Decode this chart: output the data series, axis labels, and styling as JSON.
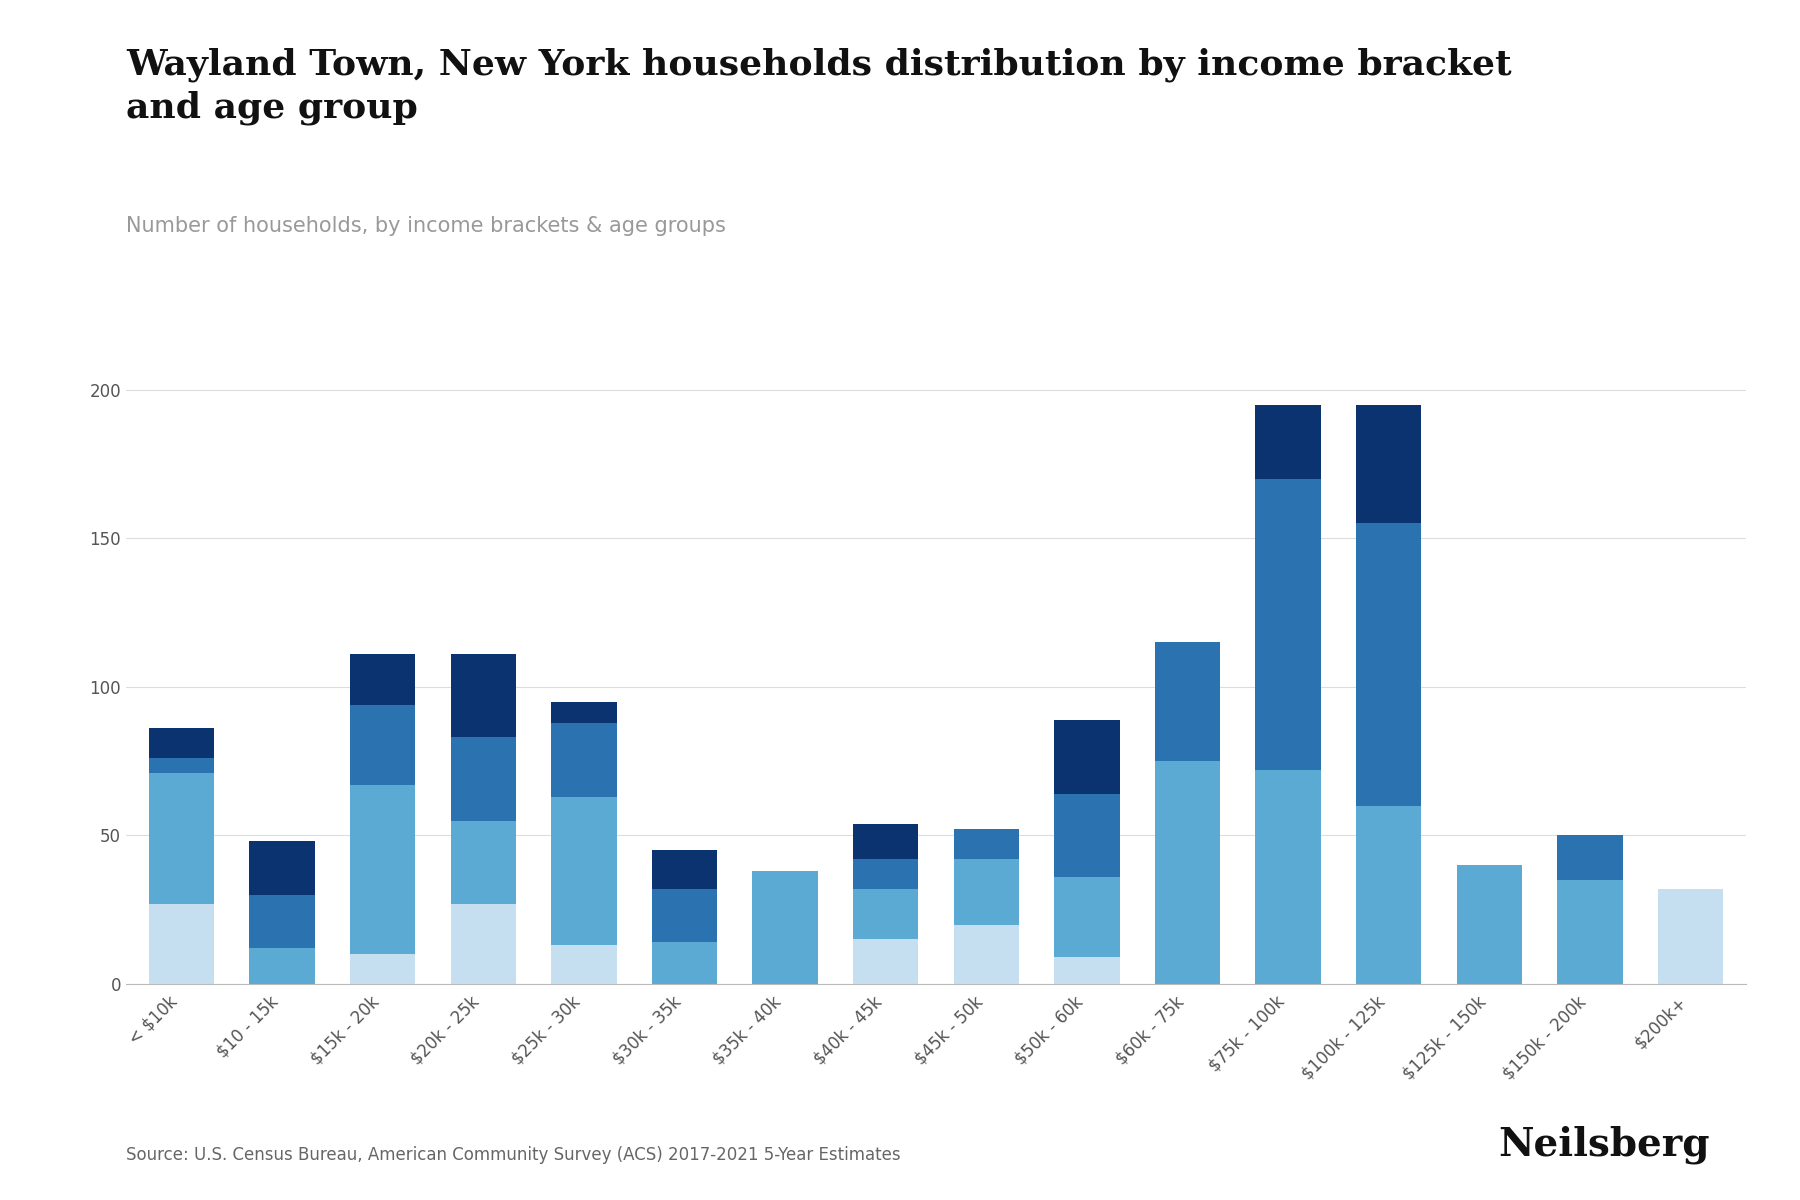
{
  "title": "Wayland Town, New York households distribution by income bracket\nand age group",
  "subtitle": "Number of households, by income brackets & age groups",
  "source": "Source: U.S. Census Bureau, American Community Survey (ACS) 2017-2021 5-Year Estimates",
  "categories": [
    "< $10k",
    "$10 - 15k",
    "$15k - 20k",
    "$20k - 25k",
    "$25k - 30k",
    "$30k - 35k",
    "$35k - 40k",
    "$40k - 45k",
    "$45k - 50k",
    "$50k - 60k",
    "$60k - 75k",
    "$75k - 100k",
    "$100k - 125k",
    "$125k - 150k",
    "$150k - 200k",
    "$200k+"
  ],
  "series": {
    "Under 25 years": [
      27,
      0,
      10,
      27,
      13,
      0,
      0,
      15,
      20,
      9,
      0,
      0,
      0,
      0,
      0,
      32
    ],
    "25 to 44 years": [
      44,
      12,
      57,
      28,
      50,
      14,
      38,
      17,
      22,
      27,
      75,
      72,
      60,
      40,
      35,
      0
    ],
    "45 to 64 years": [
      5,
      18,
      27,
      28,
      25,
      18,
      0,
      10,
      10,
      28,
      40,
      98,
      95,
      0,
      15,
      0
    ],
    "65 years and over": [
      10,
      18,
      17,
      28,
      7,
      13,
      0,
      12,
      0,
      25,
      0,
      25,
      40,
      0,
      0,
      0
    ]
  },
  "colors": {
    "Under 25 years": "#c6dff0",
    "25 to 44 years": "#5aaad3",
    "45 to 64 years": "#2b72b0",
    "65 years and over": "#0a3370"
  },
  "ylim": [
    0,
    210
  ],
  "yticks": [
    0,
    50,
    100,
    150,
    200
  ],
  "background_color": "#ffffff",
  "grid_color": "#dddddd",
  "title_fontsize": 26,
  "subtitle_fontsize": 15,
  "tick_fontsize": 12,
  "legend_fontsize": 13,
  "source_fontsize": 12
}
